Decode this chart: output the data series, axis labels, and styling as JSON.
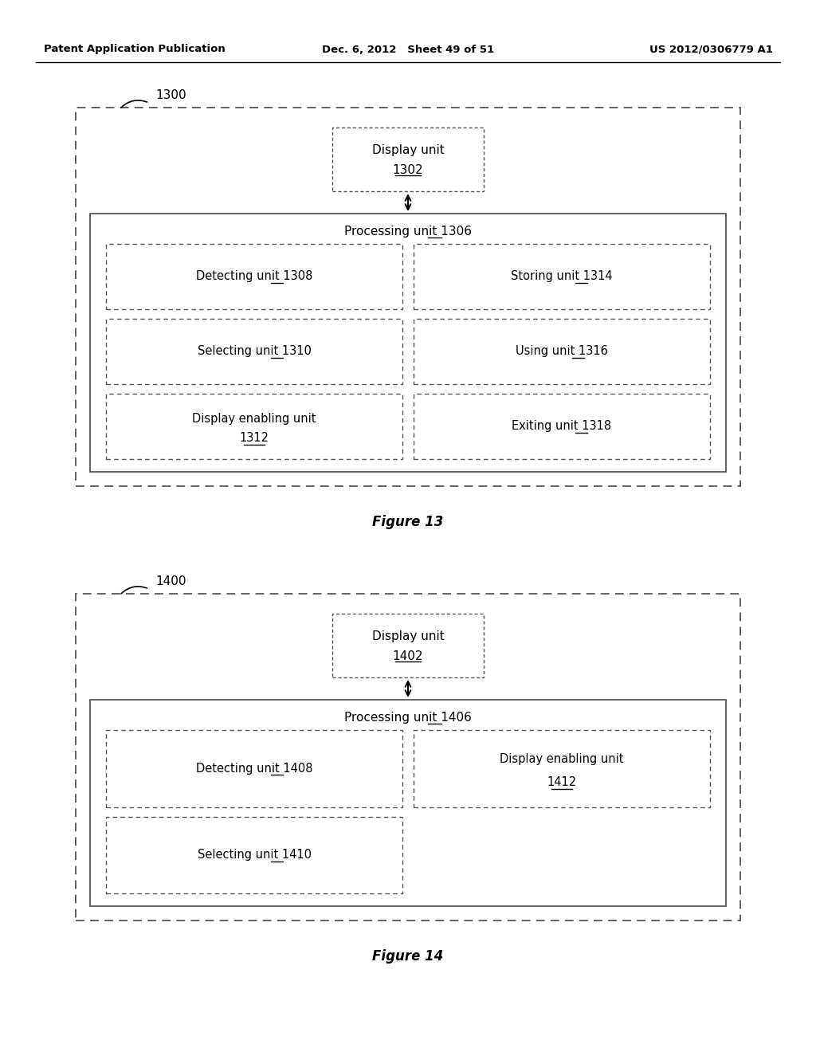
{
  "bg_color": "#ffffff",
  "header_left": "Patent Application Publication",
  "header_mid": "Dec. 6, 2012   Sheet 49 of 51",
  "header_right": "US 2012/0306779 A1",
  "fig13": {
    "label": "1300",
    "title": "Figure 13",
    "display_box": {
      "text_line1": "Display unit",
      "text_line2": "1302"
    },
    "processing_label": "Processing unit 1306",
    "processing_num": "1306",
    "inner_boxes": [
      {
        "line1": "Detecting unit 1308",
        "ul": "1308",
        "row": 0,
        "col": 0
      },
      {
        "line1": "Storing unit 1314",
        "ul": "1314",
        "row": 0,
        "col": 1
      },
      {
        "line1": "Selecting unit 1310",
        "ul": "1310",
        "row": 1,
        "col": 0
      },
      {
        "line1": "Using unit 1316",
        "ul": "1316",
        "row": 1,
        "col": 1
      },
      {
        "line1": "Display enabling unit",
        "line2": "1312",
        "ul": "1312",
        "row": 2,
        "col": 0
      },
      {
        "line1": "Exiting unit 1318",
        "ul": "1318",
        "row": 2,
        "col": 1
      }
    ]
  },
  "fig14": {
    "label": "1400",
    "title": "Figure 14",
    "display_box": {
      "text_line1": "Display unit",
      "text_line2": "1402"
    },
    "processing_label": "Processing unit 1406",
    "processing_num": "1406",
    "inner_boxes": [
      {
        "line1": "Detecting unit 1408",
        "ul": "1408",
        "row": 0,
        "col": 0
      },
      {
        "line1": "Display enabling unit",
        "line2": "1412",
        "ul": "1412",
        "row": 0,
        "col": 1
      },
      {
        "line1": "Selecting unit 1410",
        "ul": "1410",
        "row": 1,
        "col": 0
      }
    ]
  }
}
